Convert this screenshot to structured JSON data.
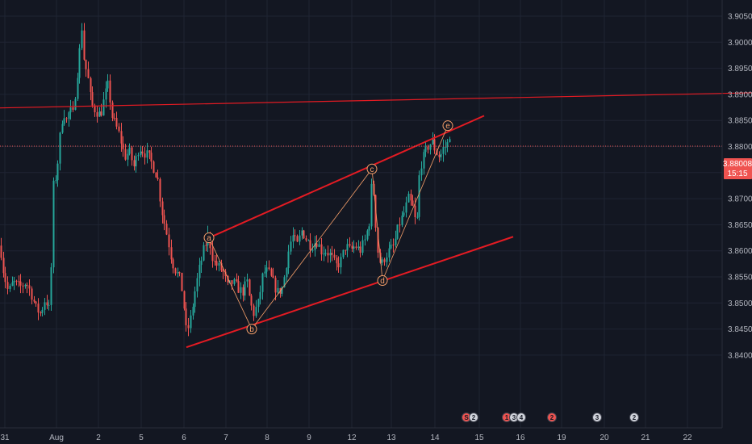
{
  "colors": {
    "background": "#131722",
    "grid": "#1f2433",
    "axis_text": "#b2b5be",
    "up": "#26a69a",
    "down": "#ef5350",
    "channel": "#e31b23",
    "wave": "#f7a06a",
    "price_line": "#ef5350",
    "badge_bg": "#d1d4dc",
    "badge_red": "#ef5350",
    "badge_border": "#434651"
  },
  "chart_data": {
    "type": "candlestick",
    "title": "",
    "xlabel": "",
    "ylabel": "",
    "ylim": [
      3.8375,
      3.9075
    ],
    "grid": true,
    "x_ticks": [
      "31",
      "Aug",
      "2",
      "5",
      "6",
      "7",
      "8",
      "9",
      "12",
      "13",
      "14",
      "15",
      "16",
      "19",
      "20",
      "21",
      "22"
    ],
    "y_ticks": [
      "3.90500",
      "3.90000",
      "3.89500",
      "3.89000",
      "3.88500",
      "3.88000",
      "3.87500",
      "3.87000",
      "3.86500",
      "3.86000",
      "3.85500",
      "3.85000",
      "3.84500",
      "3.84000"
    ],
    "last_price": {
      "value": "3.88008",
      "countdown": "15:15"
    },
    "candle_path": [
      [
        0,
        3.861
      ],
      [
        4,
        3.856
      ],
      [
        10,
        3.852
      ],
      [
        16,
        3.854
      ],
      [
        24,
        3.853
      ],
      [
        32,
        3.854
      ],
      [
        38,
        3.852
      ],
      [
        44,
        3.849
      ],
      [
        50,
        3.848
      ],
      [
        56,
        3.851
      ],
      [
        62,
        3.848
      ],
      [
        65,
        3.872
      ],
      [
        70,
        3.875
      ],
      [
        74,
        3.882
      ],
      [
        78,
        3.887
      ],
      [
        82,
        3.885
      ],
      [
        86,
        3.887
      ],
      [
        90,
        3.886
      ],
      [
        94,
        3.892
      ],
      [
        98,
        3.898
      ],
      [
        101,
        3.903
      ],
      [
        104,
        3.896
      ],
      [
        108,
        3.894
      ],
      [
        113,
        3.888
      ],
      [
        118,
        3.887
      ],
      [
        124,
        3.886
      ],
      [
        130,
        3.89
      ],
      [
        134,
        3.892
      ],
      [
        138,
        3.886
      ],
      [
        143,
        3.884
      ],
      [
        148,
        3.882
      ],
      [
        154,
        3.878
      ],
      [
        160,
        3.879
      ],
      [
        166,
        3.876
      ],
      [
        172,
        3.88
      ],
      [
        178,
        3.879
      ],
      [
        184,
        3.878
      ],
      [
        190,
        3.876
      ],
      [
        195,
        3.874
      ],
      [
        200,
        3.868
      ],
      [
        204,
        3.865
      ],
      [
        208,
        3.862
      ],
      [
        213,
        3.858
      ],
      [
        218,
        3.856
      ],
      [
        222,
        3.855
      ],
      [
        226,
        3.852
      ],
      [
        231,
        3.844
      ],
      [
        236,
        3.847
      ],
      [
        241,
        3.852
      ],
      [
        246,
        3.856
      ],
      [
        252,
        3.86
      ],
      [
        258,
        3.863
      ],
      [
        264,
        3.858
      ],
      [
        270,
        3.857
      ],
      [
        276,
        3.856
      ],
      [
        282,
        3.853
      ],
      [
        288,
        3.854
      ],
      [
        294,
        3.853
      ],
      [
        300,
        3.852
      ],
      [
        306,
        3.854
      ],
      [
        310,
        3.85
      ],
      [
        314,
        3.848
      ],
      [
        320,
        3.85
      ],
      [
        326,
        3.856
      ],
      [
        332,
        3.856
      ],
      [
        338,
        3.854
      ],
      [
        344,
        3.852
      ],
      [
        350,
        3.853
      ],
      [
        356,
        3.859
      ],
      [
        362,
        3.863
      ],
      [
        368,
        3.861
      ],
      [
        374,
        3.864
      ],
      [
        380,
        3.862
      ],
      [
        386,
        3.861
      ],
      [
        392,
        3.862
      ],
      [
        398,
        3.86
      ],
      [
        404,
        3.86
      ],
      [
        410,
        3.859
      ],
      [
        416,
        3.857
      ],
      [
        422,
        3.858
      ],
      [
        428,
        3.861
      ],
      [
        434,
        3.86
      ],
      [
        440,
        3.861
      ],
      [
        446,
        3.86
      ],
      [
        452,
        3.862
      ],
      [
        458,
        3.866
      ],
      [
        461,
        3.875
      ],
      [
        464,
        3.868
      ],
      [
        468,
        3.86
      ],
      [
        472,
        3.857
      ],
      [
        477,
        3.859
      ],
      [
        482,
        3.86
      ],
      [
        488,
        3.861
      ],
      [
        494,
        3.865
      ],
      [
        500,
        3.867
      ],
      [
        506,
        3.87
      ],
      [
        512,
        3.868
      ],
      [
        516,
        3.864
      ],
      [
        520,
        3.876
      ],
      [
        525,
        3.878
      ],
      [
        530,
        3.88
      ],
      [
        535,
        3.881
      ],
      [
        540,
        3.879
      ],
      [
        545,
        3.878
      ],
      [
        550,
        3.88
      ],
      [
        554,
        3.88
      ],
      [
        557,
        3.883
      ],
      [
        558,
        3.88
      ]
    ],
    "annotations": {
      "elliott_wave": [
        {
          "label": "a",
          "date_x": 259,
          "price": 3.8625
        },
        {
          "label": "b",
          "date_x": 312,
          "price": 3.845
        },
        {
          "label": "c",
          "date_x": 461,
          "price": 3.8757
        },
        {
          "label": "d",
          "date_x": 474,
          "price": 3.8543
        },
        {
          "label": "e",
          "date_x": 555,
          "price": 3.884
        }
      ],
      "channel_upper": [
        [
          259,
          3.8625
        ],
        [
          600,
          3.8859
        ]
      ],
      "channel_lower": [
        [
          231,
          3.8415
        ],
        [
          636,
          3.8627
        ]
      ],
      "resistance_line": [
        [
          0,
          3.8874
        ],
        [
          932,
          3.8903
        ]
      ],
      "wave_connectors": [
        [
          259,
          3.8625
        ],
        [
          312,
          3.845
        ],
        [
          461,
          3.8757
        ],
        [
          474,
          3.8543
        ],
        [
          555,
          3.884
        ]
      ]
    }
  },
  "event_badges": [
    {
      "label": "S",
      "extra": "2",
      "red": true
    },
    {
      "label": "1",
      "extra": "3",
      "red": true
    },
    {
      "label": "4",
      "extra": "",
      "red": false
    },
    {
      "label": "2",
      "extra": "",
      "red": true
    },
    {
      "label": "3",
      "extra": "",
      "red": false
    },
    {
      "label": "2",
      "extra": "",
      "red": false
    }
  ]
}
